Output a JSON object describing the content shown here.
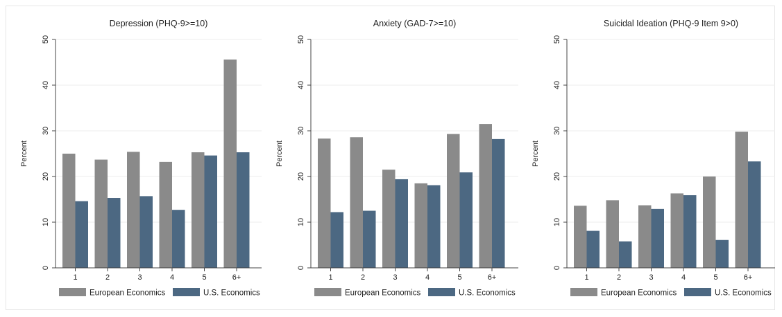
{
  "colors": {
    "european": "#8a8a8a",
    "us": "#4c6882",
    "grid": "#eeeeee",
    "axis": "#444444"
  },
  "chart_data": [
    {
      "type": "bar",
      "title": "Depression (PHQ-9>=10)",
      "ylabel": "Percent",
      "xlabel": "",
      "ylim": [
        0,
        50
      ],
      "yticks": [
        "0",
        "10",
        "20",
        "30",
        "40",
        "50"
      ],
      "categories": [
        "1",
        "2",
        "3",
        "4",
        "5",
        "6+"
      ],
      "series": [
        {
          "name": "European Economics",
          "values": [
            25.0,
            23.7,
            25.4,
            23.2,
            25.3,
            45.6
          ]
        },
        {
          "name": "U.S. Economics",
          "values": [
            14.6,
            15.3,
            15.7,
            12.7,
            24.6,
            25.3
          ]
        }
      ],
      "legend": "bottom"
    },
    {
      "type": "bar",
      "title": "Anxiety (GAD-7>=10)",
      "ylabel": "Percent",
      "xlabel": "",
      "ylim": [
        0,
        50
      ],
      "yticks": [
        "0",
        "10",
        "20",
        "30",
        "40",
        "50"
      ],
      "categories": [
        "1",
        "2",
        "3",
        "4",
        "5",
        "6+"
      ],
      "series": [
        {
          "name": "European Economics",
          "values": [
            28.3,
            28.6,
            21.5,
            18.5,
            29.3,
            31.5
          ]
        },
        {
          "name": "U.S. Economics",
          "values": [
            12.2,
            12.5,
            19.4,
            18.1,
            20.9,
            28.2
          ]
        }
      ],
      "legend": "bottom"
    },
    {
      "type": "bar",
      "title": "Suicidal Ideation (PHQ-9 Item 9>0)",
      "ylabel": "Percent",
      "xlabel": "",
      "ylim": [
        0,
        50
      ],
      "yticks": [
        "0",
        "10",
        "20",
        "30",
        "40",
        "50"
      ],
      "categories": [
        "1",
        "2",
        "3",
        "4",
        "5",
        "6+"
      ],
      "series": [
        {
          "name": "European Economics",
          "values": [
            13.6,
            14.8,
            13.7,
            16.3,
            20.0,
            29.8
          ]
        },
        {
          "name": "U.S. Economics",
          "values": [
            8.1,
            5.8,
            12.9,
            15.9,
            6.1,
            23.3
          ]
        }
      ],
      "legend": "bottom"
    }
  ]
}
